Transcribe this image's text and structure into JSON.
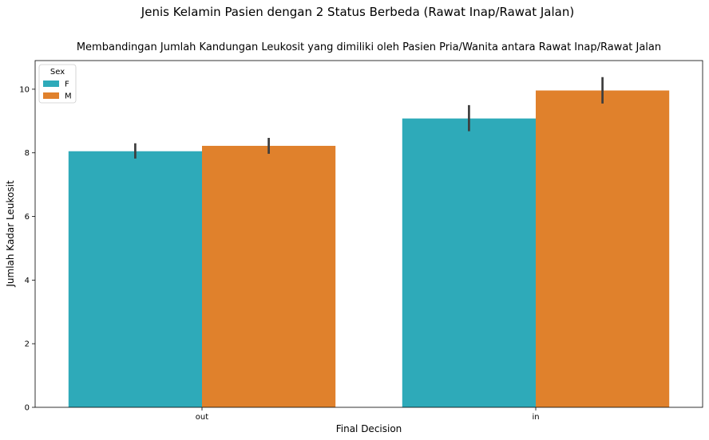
{
  "chart_data": {
    "type": "bar",
    "suptitle": "Jenis Kelamin Pasien dengan 2 Status Berbeda (Rawat Inap/Rawat Jalan)",
    "title": "Membandingan Jumlah Kandungan Leukosit yang dimiliki oleh Pasien Pria/Wanita antara Rawat Inap/Rawat Jalan",
    "xlabel": "Final Decision",
    "ylabel": "Jumlah Kadar Leukosit",
    "categories": [
      "out",
      "in"
    ],
    "ylim": [
      0,
      10.9
    ],
    "yticks": [
      0,
      2,
      4,
      6,
      8,
      10
    ],
    "grid": false,
    "legend": {
      "title": "Sex",
      "placement": "top-left"
    },
    "series": [
      {
        "name": "F",
        "color": "#2eaab9",
        "values": [
          8.05,
          9.08
        ],
        "ci_low": [
          7.82,
          8.68
        ],
        "ci_high": [
          8.3,
          9.5
        ]
      },
      {
        "name": "M",
        "color": "#e0812c",
        "values": [
          8.22,
          9.96
        ],
        "ci_low": [
          7.97,
          9.55
        ],
        "ci_high": [
          8.47,
          10.38
        ]
      }
    ]
  }
}
